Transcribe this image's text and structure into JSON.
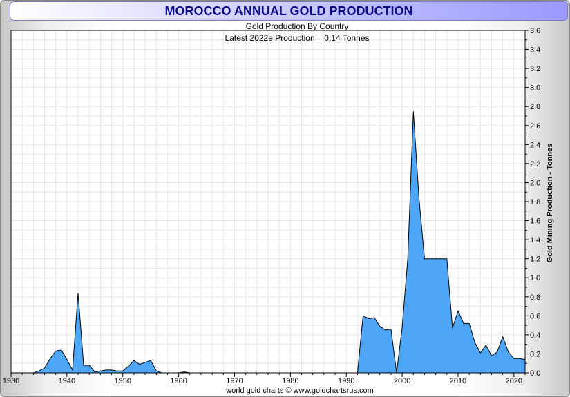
{
  "title": "MOROCCO ANNUAL GOLD PRODUCTION",
  "colors": {
    "fill": "#4da6f7",
    "stroke": "#000000",
    "title": "#0a0a8a",
    "grid": "#e6e6e6"
  },
  "chart_data": {
    "type": "area",
    "title": "MOROCCO ANNUAL GOLD PRODUCTION",
    "subtitle": "Gold Production By Country",
    "annotation": "Latest 2022e  Production = 0.14 Tonnes",
    "xlabel": "",
    "ylabel": "Gold Mining Production - Tonnes",
    "footer": "world gold charts © www.goldchartsrus.com",
    "xlim": [
      1930,
      2022
    ],
    "ylim": [
      0,
      3.6
    ],
    "x_ticks": [
      "1930",
      "1940",
      "1950",
      "1960",
      "1970",
      "1980",
      "1990",
      "2000",
      "2010",
      "2020"
    ],
    "y_ticks": [
      "0.0",
      "0.2",
      "0.4",
      "0.6",
      "0.8",
      "1.0",
      "1.2",
      "1.4",
      "1.6",
      "1.8",
      "2.0",
      "2.2",
      "2.4",
      "2.6",
      "2.8",
      "3.0",
      "3.2",
      "3.4",
      "3.6"
    ],
    "series": [
      {
        "name": "Morocco",
        "x": [
          1934,
          1935,
          1936,
          1937,
          1938,
          1939,
          1940,
          1941,
          1942,
          1943,
          1944,
          1945,
          1946,
          1947,
          1948,
          1949,
          1950,
          1951,
          1952,
          1953,
          1954,
          1955,
          1956,
          1957,
          1958,
          1959,
          1960,
          1961,
          1962,
          1963,
          1970,
          1980,
          1990,
          1992,
          1993,
          1994,
          1995,
          1996,
          1997,
          1998,
          1999,
          2000,
          2001,
          2002,
          2003,
          2004,
          2005,
          2006,
          2007,
          2008,
          2009,
          2010,
          2011,
          2012,
          2013,
          2014,
          2015,
          2016,
          2017,
          2018,
          2019,
          2020,
          2021,
          2022
        ],
        "values": [
          0.0,
          0.02,
          0.05,
          0.15,
          0.23,
          0.24,
          0.14,
          0.03,
          0.84,
          0.08,
          0.08,
          0.01,
          0.02,
          0.03,
          0.03,
          0.02,
          0.02,
          0.07,
          0.13,
          0.09,
          0.11,
          0.13,
          0.02,
          0.0,
          0.0,
          0.0,
          0.0,
          0.01,
          0.0,
          0.0,
          0.0,
          0.0,
          0.0,
          0.0,
          0.6,
          0.57,
          0.58,
          0.49,
          0.45,
          0.46,
          0.0,
          0.48,
          1.2,
          2.75,
          1.85,
          1.2,
          1.2,
          1.2,
          1.2,
          1.2,
          0.47,
          0.65,
          0.52,
          0.52,
          0.32,
          0.21,
          0.29,
          0.18,
          0.22,
          0.38,
          0.22,
          0.15,
          0.15,
          0.14
        ]
      }
    ]
  }
}
